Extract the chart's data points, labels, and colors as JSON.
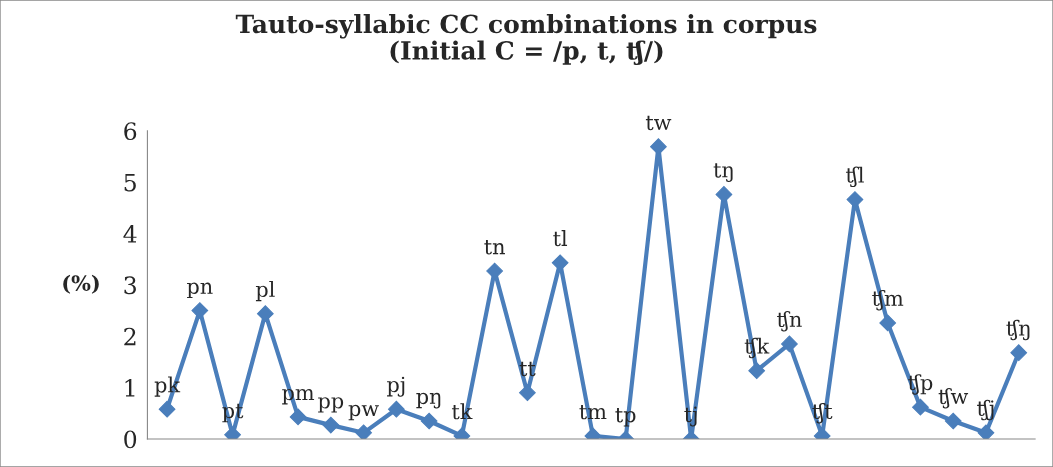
{
  "chart_data": {
    "type": "line",
    "title": "Tauto-syllabic CC combinations in corpus\n(Initial C = /p, t, ʧ/)",
    "ylabel": "(%)",
    "categories": [
      "pk",
      "pn",
      "pt",
      "pl",
      "pm",
      "pp",
      "pw",
      "pj",
      "pŋ",
      "tk",
      "tn",
      "tt",
      "tl",
      "tm",
      "tp",
      "tw",
      "tj",
      "tŋ",
      "ʧk",
      "ʧn",
      "ʧt",
      "ʧl",
      "ʧm",
      "ʧp",
      "ʧw",
      "ʧj",
      "ʧŋ"
    ],
    "series": [
      {
        "color": "#4a7ebb",
        "values": [
          0.58,
          2.5,
          0.08,
          2.44,
          0.43,
          0.27,
          0.12,
          0.58,
          0.35,
          0.06,
          3.27,
          0.9,
          3.43,
          0.06,
          0.0,
          5.69,
          0.0,
          4.76,
          1.33,
          1.85,
          0.06,
          4.66,
          2.26,
          0.62,
          0.35,
          0.12,
          1.68
        ]
      }
    ],
    "ylim": [
      0,
      6
    ],
    "yticks": [
      0,
      1,
      2,
      3,
      4,
      5,
      6
    ],
    "tick_labels": "y",
    "grid": false,
    "legend": false,
    "marker": "diamond",
    "line_style": "solid"
  }
}
